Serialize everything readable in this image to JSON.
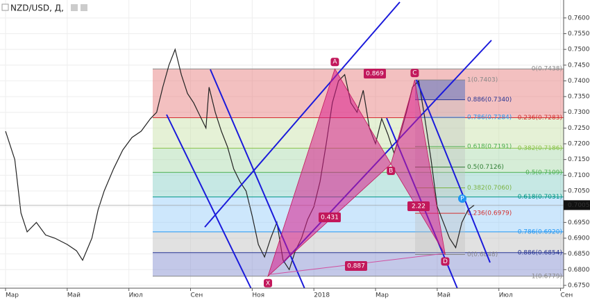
{
  "chart_data": {
    "type": "line",
    "title": "NZD/USD, Д,",
    "color": "#222222",
    "x": [
      0,
      0.3,
      0.5,
      0.7,
      1,
      1.3,
      1.6,
      2,
      2.3,
      2.5,
      2.8,
      3,
      3.2,
      3.5,
      3.8,
      4.1,
      4.4,
      4.7,
      4.9,
      5.1,
      5.3,
      5.5,
      5.7,
      5.9,
      6.1,
      6.3,
      6.5,
      6.6,
      6.8,
      7.0,
      7.2,
      7.4,
      7.6,
      7.8,
      8.0,
      8.2,
      8.4,
      8.6,
      8.8,
      9.0,
      9.2,
      9.4,
      9.6,
      9.8,
      10.0,
      10.2,
      10.4,
      10.6,
      10.8,
      11.0,
      11.2,
      11.4,
      11.6,
      11.8,
      12.0,
      12.2,
      12.4,
      12.6,
      12.8,
      13.0,
      13.2,
      13.4,
      13.6,
      13.8,
      14.0,
      14.2,
      14.4,
      14.6,
      14.8,
      15.0,
      15.2
    ],
    "values": [
      0.724,
      0.715,
      0.698,
      0.692,
      0.695,
      0.691,
      0.69,
      0.688,
      0.686,
      0.683,
      0.69,
      0.699,
      0.705,
      0.712,
      0.718,
      0.722,
      0.724,
      0.728,
      0.73,
      0.738,
      0.745,
      0.75,
      0.742,
      0.736,
      0.733,
      0.729,
      0.725,
      0.738,
      0.73,
      0.724,
      0.719,
      0.712,
      0.708,
      0.705,
      0.697,
      0.688,
      0.684,
      0.69,
      0.695,
      0.683,
      0.68,
      0.686,
      0.69,
      0.696,
      0.7,
      0.708,
      0.72,
      0.733,
      0.74,
      0.742,
      0.733,
      0.73,
      0.737,
      0.725,
      0.72,
      0.728,
      0.723,
      0.717,
      0.723,
      0.73,
      0.738,
      0.74,
      0.728,
      0.715,
      0.7,
      0.695,
      0.69,
      0.687,
      0.695,
      0.699,
      0.7005
    ],
    "xlim": [
      -0.18,
      18.1
    ],
    "xticks": [
      {
        "value": 0,
        "label": "Мар"
      },
      {
        "value": 2,
        "label": "Май"
      },
      {
        "value": 4,
        "label": "Июл"
      },
      {
        "value": 6,
        "label": "Сен"
      },
      {
        "value": 8,
        "label": "Ноя"
      },
      {
        "value": 10,
        "label": "2018"
      },
      {
        "value": 12,
        "label": "Мар"
      },
      {
        "value": 14,
        "label": "Май"
      },
      {
        "value": 16,
        "label": "Июл"
      },
      {
        "value": 18,
        "label": "Сен"
      }
    ],
    "ylim": [
      0.6741,
      0.7657
    ],
    "yticks": [
      {
        "value": 0.675,
        "label": "0.6750"
      },
      {
        "value": 0.68,
        "label": "0.6800"
      },
      {
        "value": 0.685,
        "label": "0.6850"
      },
      {
        "value": 0.69,
        "label": "0.6900"
      },
      {
        "value": 0.695,
        "label": "0.6950"
      },
      {
        "value": 0.7,
        "label": "0.7000"
      },
      {
        "value": 0.705,
        "label": "0.7050"
      },
      {
        "value": 0.71,
        "label": "0.7100"
      },
      {
        "value": 0.715,
        "label": "0.7150"
      },
      {
        "value": 0.72,
        "label": "0.7200"
      },
      {
        "value": 0.725,
        "label": "0.7250"
      },
      {
        "value": 0.73,
        "label": "0.7300"
      },
      {
        "value": 0.735,
        "label": "0.7350"
      },
      {
        "value": 0.74,
        "label": "0.7400"
      },
      {
        "value": 0.745,
        "label": "0.7450"
      },
      {
        "value": 0.75,
        "label": "0.7500"
      },
      {
        "value": 0.755,
        "label": "0.7550"
      },
      {
        "value": 0.76,
        "label": "0.7600"
      }
    ],
    "last_price": 0.7005,
    "fib_levels": [
      {
        "label": "0(0.7438)",
        "value": 0.7438,
        "color": "#888888"
      },
      {
        "label": "0.236(0.7283)",
        "value": 0.7283,
        "color": "#d32f2f"
      },
      {
        "label": "0.382(0.7186)",
        "value": 0.7186,
        "color": "#8bc34a"
      },
      {
        "label": "0.5(0.7109)",
        "value": 0.7109,
        "color": "#4caf50"
      },
      {
        "label": "0.618(0.7031)",
        "value": 0.7031,
        "color": "#009688"
      },
      {
        "label": "0.786(0.6920)",
        "value": 0.692,
        "color": "#2196f3"
      },
      {
        "label": "0.886(0.6854)",
        "value": 0.6854,
        "color": "#283593"
      },
      {
        "label": "1(0.6779)",
        "value": 0.6779,
        "color": "#888888"
      }
    ],
    "fib_levels_2": [
      {
        "label": "1(0.7403)",
        "value": 0.7403,
        "color": "#888888"
      },
      {
        "label": "0.886(0.7340)",
        "value": 0.734,
        "color": "#283593"
      },
      {
        "label": "0.786(0.7284)",
        "value": 0.7284,
        "color": "#2196f3"
      },
      {
        "label": "0.618(0.7191)",
        "value": 0.7191,
        "color": "#4caf50"
      },
      {
        "label": "0.5(0.7126)",
        "value": 0.7126,
        "color": "#2e7d32"
      },
      {
        "label": "0.382(0.7060)",
        "value": 0.706,
        "color": "#7cb342"
      },
      {
        "label": "0.236(0.6979)",
        "value": 0.6979,
        "color": "#d32f2f"
      },
      {
        "label": "0(0.6848)",
        "value": 0.6848,
        "color": "#888888"
      }
    ],
    "pattern_points": [
      {
        "label": "X",
        "x": 8.51,
        "y": 0.6779
      },
      {
        "label": "A",
        "x": 10.68,
        "y": 0.7438
      },
      {
        "label": "B",
        "x": 12.5,
        "y": 0.7136
      },
      {
        "label": "C",
        "x": 13.27,
        "y": 0.7403
      },
      {
        "label": "D",
        "x": 14.26,
        "y": 0.6848
      }
    ],
    "ratios": [
      0.431,
      0.869,
      0.887,
      2.22
    ],
    "marker": "P"
  }
}
